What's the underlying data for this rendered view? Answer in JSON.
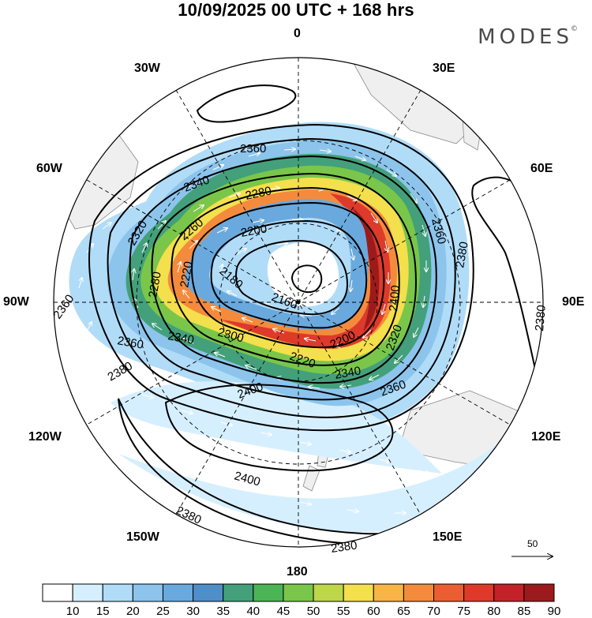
{
  "header": {
    "title": "10/09/2025  00 UTC  + 168 hrs",
    "brand": "MODES"
  },
  "longitude_labels": {
    "n0": "0",
    "n30w": "30W",
    "n30e": "30E",
    "n60w": "60W",
    "n60e": "60E",
    "w90": "90W",
    "e90": "90E",
    "n120w": "120W",
    "n120e": "120E",
    "n150w": "150W",
    "n150e": "150E",
    "s180": "180"
  },
  "contour_labels": {
    "c2360a": "2360",
    "c2340a": "2340",
    "c2320a": "2320",
    "c2280a": "2280",
    "c2260a": "2260",
    "c2200a": "2200",
    "c2220a": "2220",
    "c2280b": "2280",
    "c2180a": "2180",
    "c2160a": "2160",
    "c2200b": "2200",
    "c2300a": "2300",
    "c2340b": "2340",
    "c2360b": "2360",
    "c2360c": "2360",
    "c2380a": "2380",
    "c2400a": "2400",
    "c2320b": "2320",
    "c2340c": "2340",
    "c2360d": "2360",
    "c2380b": "2380",
    "c2380c": "2380",
    "c2400b": "2400",
    "c2380d": "2380",
    "c2380e": "2380",
    "c2360e": "2360",
    "c2400c": "2400",
    "c2220b": "2220"
  },
  "vector_scale": {
    "label": "50"
  },
  "colorbar": {
    "labels": [
      "10",
      "15",
      "20",
      "25",
      "30",
      "35",
      "40",
      "45",
      "50",
      "55",
      "60",
      "65",
      "70",
      "75",
      "80",
      "85",
      "90"
    ],
    "colors": [
      "#ffffff",
      "#d6efff",
      "#b0dcf8",
      "#8cc4ec",
      "#6aa9dd",
      "#4f8fc9",
      "#43a07a",
      "#4bb455",
      "#7ac64a",
      "#bdd64a",
      "#f4df4c",
      "#f7b447",
      "#f48b3c",
      "#ea5e31",
      "#dd3a2b",
      "#c32228",
      "#9b1b1d"
    ]
  }
}
